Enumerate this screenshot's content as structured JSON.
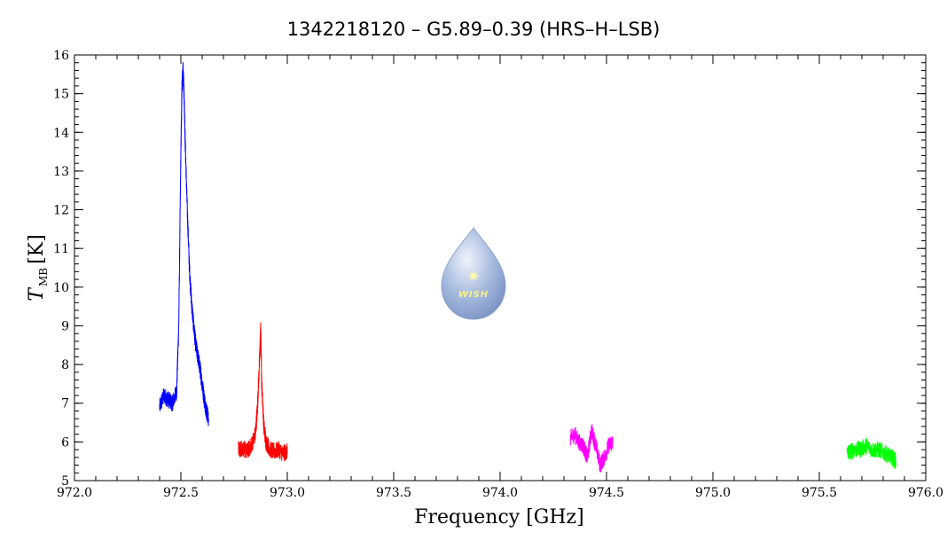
{
  "chart_data": {
    "type": "line",
    "title": "1342218120 – G5.89–0.39 (HRS–H–LSB)",
    "xlabel": "Frequency [GHz]",
    "ylabel": {
      "symbol": "T",
      "subscript": "MB",
      "unit": "[K]"
    },
    "xlim": [
      972.0,
      976.0
    ],
    "ylim": [
      5,
      16
    ],
    "xticks": [
      "972.0",
      "972.5",
      "973.0",
      "973.5",
      "974.0",
      "974.5",
      "975.0",
      "975.5",
      "976.0"
    ],
    "yticks": [
      "5",
      "6",
      "7",
      "8",
      "9",
      "10",
      "11",
      "12",
      "13",
      "14",
      "15",
      "16"
    ],
    "grid": false,
    "logo": {
      "text": "WISH"
    },
    "series": [
      {
        "color": "#0000ff",
        "x": [
          972.4,
          972.42,
          972.44,
          972.46,
          972.48,
          972.49,
          972.5,
          972.505,
          972.51,
          972.515,
          972.52,
          972.53,
          972.54,
          972.55,
          972.56,
          972.57,
          972.58,
          972.59,
          972.6,
          972.61,
          972.62,
          972.63
        ],
        "y": [
          6.9,
          7.2,
          7.1,
          7.0,
          7.3,
          9.0,
          13.5,
          15.2,
          15.6,
          15.0,
          13.8,
          12.0,
          10.5,
          9.6,
          9.0,
          8.5,
          8.2,
          7.9,
          7.5,
          7.1,
          6.8,
          6.6
        ]
      },
      {
        "color": "#ff0000",
        "x": [
          972.77,
          972.79,
          972.81,
          972.83,
          972.85,
          972.86,
          972.87,
          972.875,
          972.88,
          972.89,
          972.9,
          972.92,
          972.94,
          972.96,
          972.98,
          973.0
        ],
        "y": [
          5.8,
          5.85,
          5.75,
          5.9,
          6.2,
          6.9,
          8.2,
          8.9,
          7.5,
          6.4,
          6.0,
          5.8,
          5.75,
          5.8,
          5.7,
          5.75
        ]
      },
      {
        "color": "#ff00ff",
        "x": [
          974.33,
          974.35,
          974.37,
          974.39,
          974.41,
          974.43,
          974.45,
          974.47,
          974.49,
          974.51,
          974.53
        ],
        "y": [
          6.1,
          6.2,
          6.0,
          5.9,
          5.6,
          6.3,
          5.9,
          5.4,
          5.6,
          5.9,
          6.0
        ]
      },
      {
        "color": "#00ff00",
        "x": [
          975.63,
          975.66,
          975.69,
          975.72,
          975.75,
          975.78,
          975.81,
          975.84,
          975.86
        ],
        "y": [
          5.7,
          5.8,
          5.8,
          5.9,
          5.8,
          5.8,
          5.7,
          5.6,
          5.5
        ]
      }
    ]
  }
}
